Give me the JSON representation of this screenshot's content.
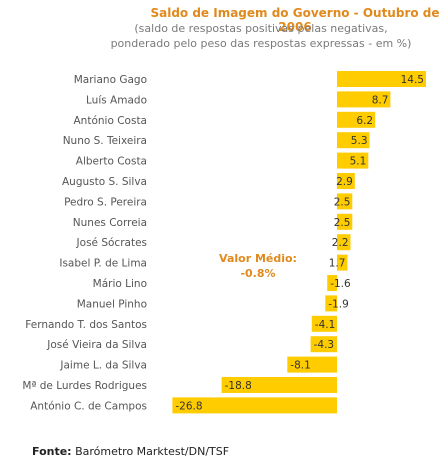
{
  "chart_data": {
    "type": "bar",
    "orientation": "horizontal",
    "title": "Saldo de Imagem do Governo - Outubro de 2006",
    "subtitle_line1": "(saldo de respostas positivas pelas negativas,",
    "subtitle_line2": "ponderado pelo peso das respostas expressas - em %)",
    "categories": [
      "Mariano Gago",
      "Luís Amado",
      "António Costa",
      "Nuno S. Teixeira",
      "Alberto Costa",
      "Augusto S. Silva",
      "Pedro S. Pereira",
      "Nunes Correia",
      "José Sócrates",
      "Isabel P. de Lima",
      "Mário Lino",
      "Manuel Pinho",
      "Fernando T. dos Santos",
      "José Vieira da Silva",
      "Jaime L. da Silva",
      "Mª de Lurdes Rodrigues",
      "António C. de Campos"
    ],
    "values": [
      14.5,
      8.7,
      6.2,
      5.3,
      5.1,
      2.9,
      2.5,
      2.5,
      2.2,
      1.7,
      -1.6,
      -1.9,
      -4.1,
      -4.3,
      -8.1,
      -18.8,
      -26.8
    ],
    "value_labels": [
      "14.5",
      "8.7",
      "6.2",
      "5.3",
      "5.1",
      "2.9",
      "2.5",
      "2.5",
      "2.2",
      "1.7",
      "-1.6",
      "-1.9",
      "-4.1",
      "-4.3",
      "-8.1",
      "-18.8",
      "-26.8"
    ],
    "average_label_line1": "Valor Médio:",
    "average_label_line2": "-0.8%",
    "bar_color": "#ffcc00",
    "title_color": "#e08a1e",
    "xlim": [
      -28,
      16
    ]
  },
  "source": {
    "label": "Fonte:",
    "text": "Barómetro Marktest/DN/TSF"
  }
}
